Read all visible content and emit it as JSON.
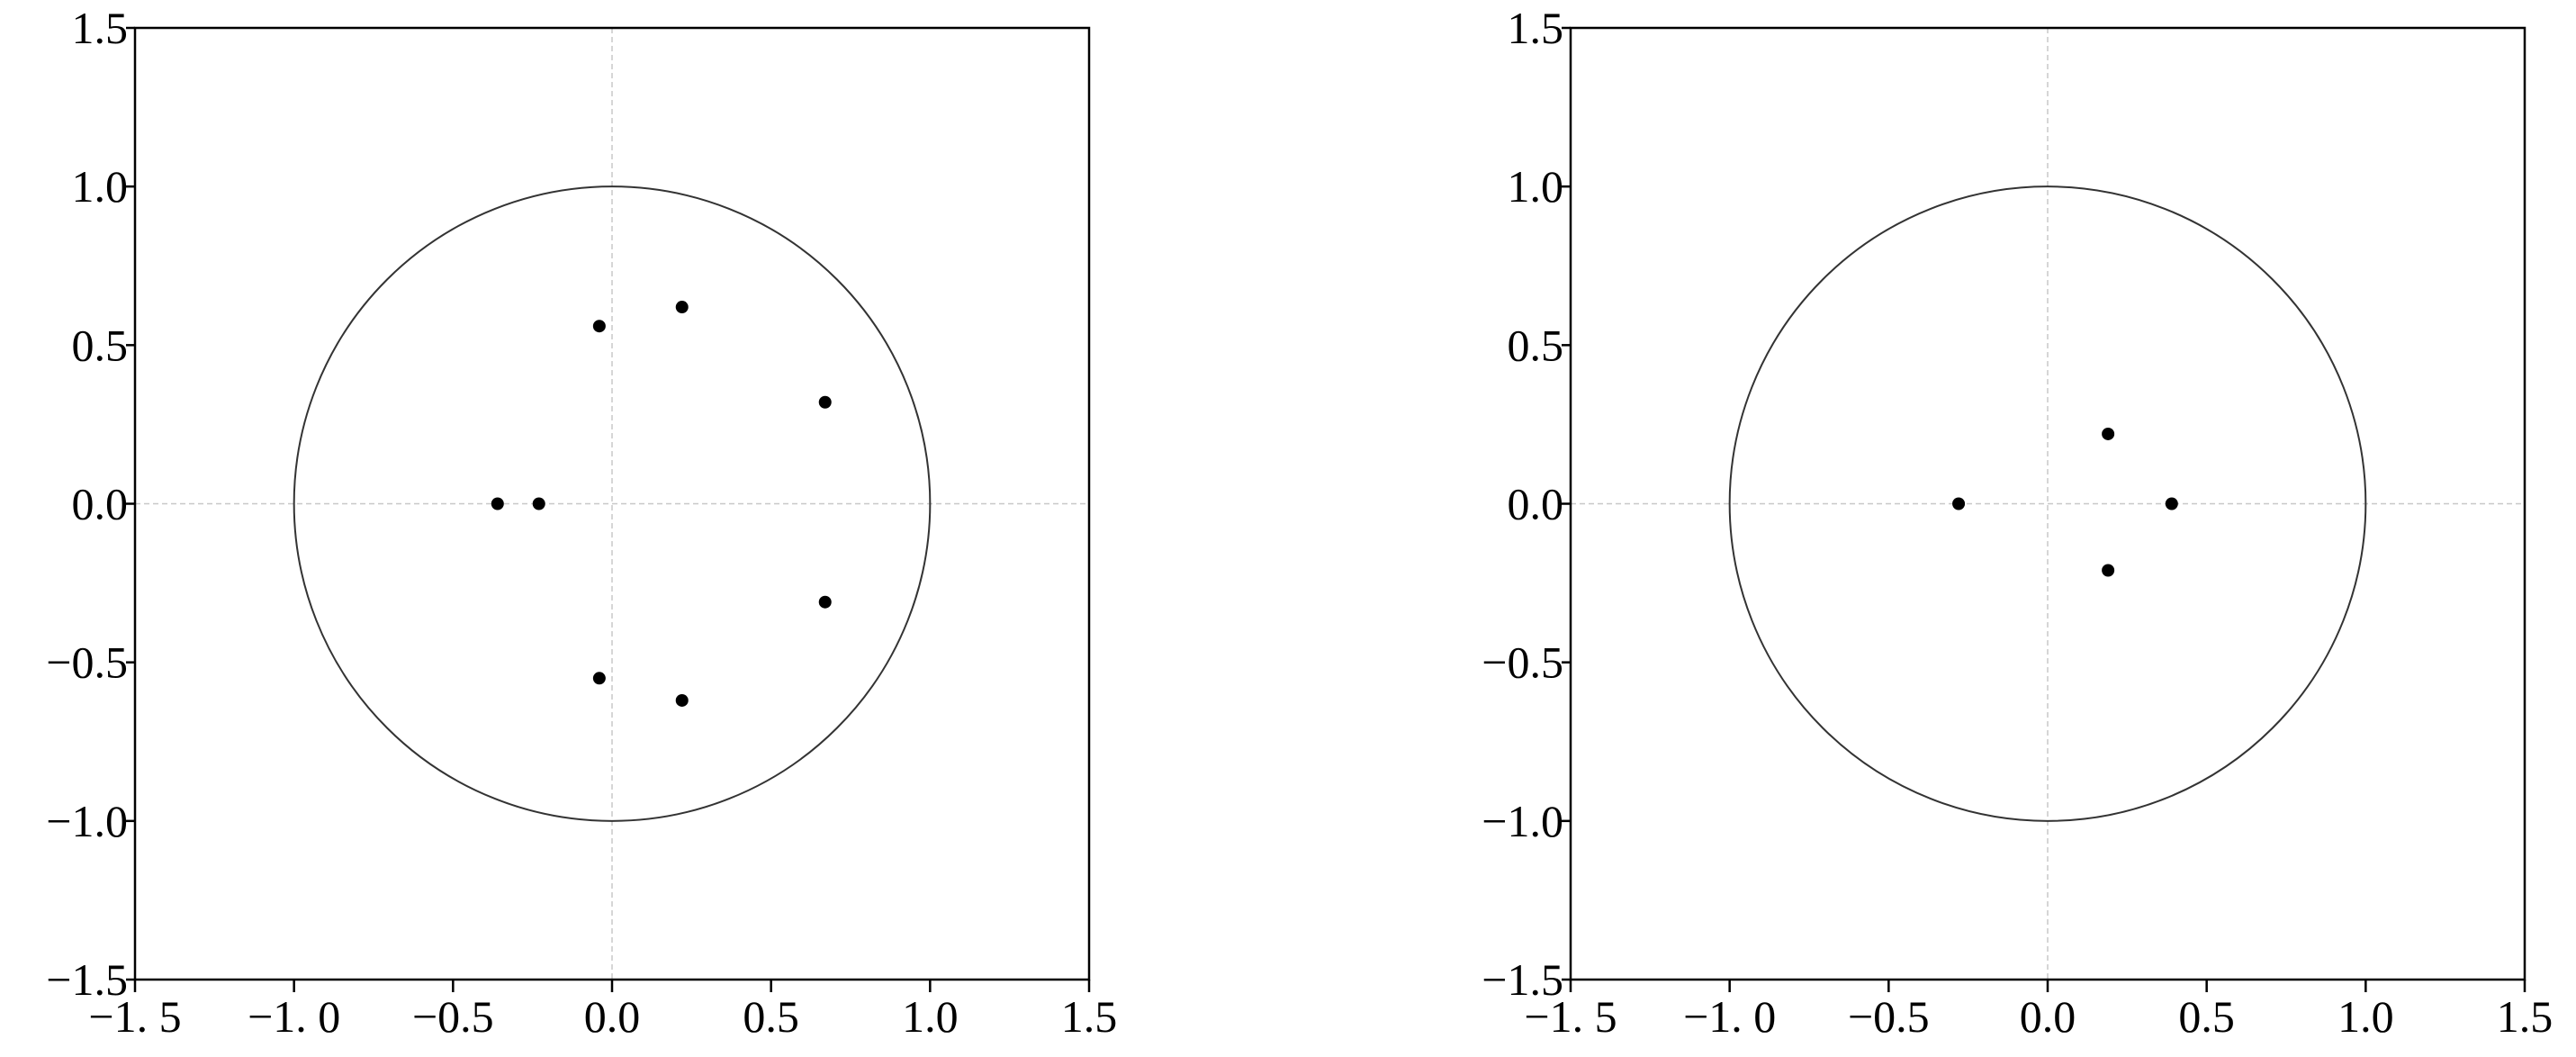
{
  "chart_data": [
    {
      "type": "scatter",
      "color": "#000000",
      "unit_circle": true,
      "zero_lines": true,
      "x": [
        -0.36,
        -0.23,
        -0.04,
        -0.04,
        0.22,
        0.22,
        0.67,
        0.67
      ],
      "values": [
        0,
        0,
        0.56,
        -0.55,
        0.62,
        -0.62,
        0.32,
        -0.31
      ],
      "xlim": [
        -1.5,
        1.5
      ],
      "ylim": [
        -1.5,
        1.5
      ],
      "xticks": [
        {
          "value": -1.5,
          "label": "−1. 5"
        },
        {
          "value": -1,
          "label": "−1. 0"
        },
        {
          "value": -0.5,
          "label": "−0.5"
        },
        {
          "value": 0,
          "label": "0.0"
        },
        {
          "value": 0.5,
          "label": "0.5"
        },
        {
          "value": 1,
          "label": "1.0"
        },
        {
          "value": 1.5,
          "label": "1.5"
        }
      ],
      "yticks": [
        {
          "value": 1.5,
          "label": "1.5"
        },
        {
          "value": 1,
          "label": "1.0"
        },
        {
          "value": 0.5,
          "label": "0.5"
        },
        {
          "value": 0,
          "label": "0.0"
        },
        {
          "value": -0.5,
          "label": "−0.5"
        },
        {
          "value": -1,
          "label": "−1.0"
        },
        {
          "value": -1.5,
          "label": "−1.5"
        }
      ]
    },
    {
      "type": "scatter",
      "color": "#000000",
      "unit_circle": true,
      "zero_lines": true,
      "x": [
        -0.28,
        0.19,
        0.19,
        0.39
      ],
      "values": [
        0,
        0.22,
        -0.21,
        0
      ],
      "xlim": [
        -1.5,
        1.5
      ],
      "ylim": [
        -1.5,
        1.5
      ],
      "xticks": [
        {
          "value": -1.5,
          "label": "−1. 5"
        },
        {
          "value": -1,
          "label": "−1. 0"
        },
        {
          "value": -0.5,
          "label": "−0.5"
        },
        {
          "value": 0,
          "label": "0.0"
        },
        {
          "value": 0.5,
          "label": "0.5"
        },
        {
          "value": 1,
          "label": "1.0"
        },
        {
          "value": 1.5,
          "label": "1.5"
        }
      ],
      "yticks": [
        {
          "value": 1.5,
          "label": "1.5"
        },
        {
          "value": 1,
          "label": "1.0"
        },
        {
          "value": 0.5,
          "label": "0.5"
        },
        {
          "value": 0,
          "label": "0.0"
        },
        {
          "value": -0.5,
          "label": "−0.5"
        },
        {
          "value": -1,
          "label": "−1.0"
        },
        {
          "value": -1.5,
          "label": "−1.5"
        }
      ]
    }
  ]
}
